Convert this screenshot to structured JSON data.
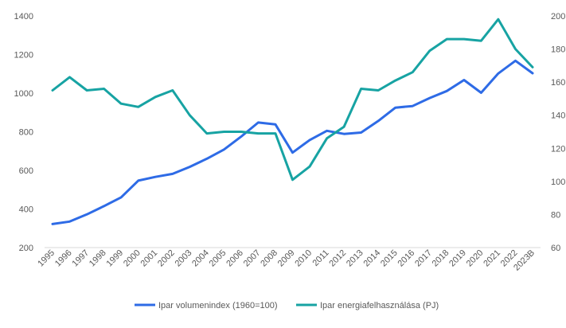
{
  "chart_data": {
    "type": "line",
    "categories": [
      "1995",
      "1996",
      "1997",
      "1998",
      "1999",
      "2000",
      "2001",
      "2002",
      "2003",
      "2004",
      "2005",
      "2006",
      "2007",
      "2008",
      "2009",
      "2010",
      "2011",
      "2012",
      "2013",
      "2014",
      "2015",
      "2016",
      "2017",
      "2018",
      "2019",
      "2020",
      "2021",
      "2022",
      "2023B"
    ],
    "series": [
      {
        "name": "Ipar volumenindex (1960=100)",
        "axis": "left",
        "color": "#2E6BE6",
        "values": [
          322,
          335,
          372,
          415,
          460,
          547,
          566,
          582,
          618,
          660,
          708,
          775,
          848,
          838,
          692,
          757,
          805,
          789,
          796,
          856,
          925,
          933,
          975,
          1011,
          1068,
          1002,
          1102,
          1168,
          1103
        ]
      },
      {
        "name": "Ipar energiafelhasználása (PJ)",
        "axis": "right",
        "color": "#17A3A3",
        "values": [
          155,
          163,
          155,
          156,
          147,
          145,
          151,
          155,
          140,
          129,
          130,
          130,
          129,
          129,
          101,
          109,
          126,
          133,
          156,
          155,
          161,
          166,
          179,
          186,
          186,
          185,
          198,
          180,
          169
        ]
      }
    ],
    "y_left": {
      "min": 200,
      "max": 1400,
      "ticks": [
        "200",
        "400",
        "600",
        "800",
        "1000",
        "1200",
        "1400"
      ]
    },
    "y_right": {
      "min": 60,
      "max": 200,
      "ticks": [
        "60",
        "80",
        "100",
        "120",
        "140",
        "160",
        "180",
        "200"
      ]
    },
    "title": "",
    "grid": false,
    "legend_position": "bottom"
  }
}
